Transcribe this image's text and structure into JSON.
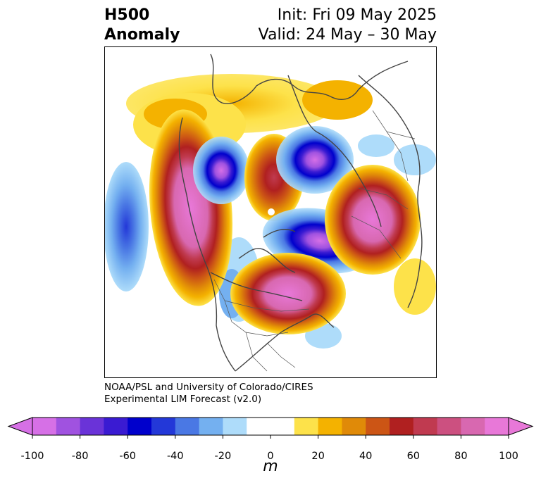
{
  "title": {
    "left_line1": "H500",
    "left_line2": "Anomaly",
    "right_line1": "Init: Fri 09 May 2025",
    "right_line2": "Valid: 24 May – 30 May"
  },
  "credit": {
    "line1": "NOAA/PSL and University of Colorado/CIRES",
    "line2": "Experimental LIM Forecast (v2.0)"
  },
  "colorbar": {
    "unit": "m",
    "ticks": [
      "-100",
      "-80",
      "-60",
      "-40",
      "-20",
      "0",
      "20",
      "40",
      "60",
      "80",
      "100"
    ],
    "colors": [
      "#d670e6",
      "#a052e0",
      "#6a33d8",
      "#3a1bd2",
      "#0000cc",
      "#2338d8",
      "#4a78e4",
      "#74b0f0",
      "#aedcfa",
      "#ffffff",
      "#ffffff",
      "#fde24a",
      "#f4b200",
      "#e08a08",
      "#cc5515",
      "#b02020",
      "#c03a50",
      "#cc5080",
      "#d868b0",
      "#e878d8"
    ]
  },
  "anomalies": [
    {
      "name": "pacific-negative",
      "sign": "negative",
      "peak": -45
    },
    {
      "name": "west-coast-positive",
      "sign": "positive",
      "peak": 100
    },
    {
      "name": "alaska-negative",
      "sign": "negative",
      "peak": -70
    },
    {
      "name": "central-arctic-positive",
      "sign": "positive",
      "peak": 70
    },
    {
      "name": "barents-negative",
      "sign": "negative",
      "peak": -100
    },
    {
      "name": "greenland-negative",
      "sign": "negative",
      "peak": -100
    },
    {
      "name": "siberia-positive",
      "sign": "positive",
      "peak": 90
    },
    {
      "name": "eastern-canada-positive",
      "sign": "positive",
      "peak": 100
    }
  ]
}
